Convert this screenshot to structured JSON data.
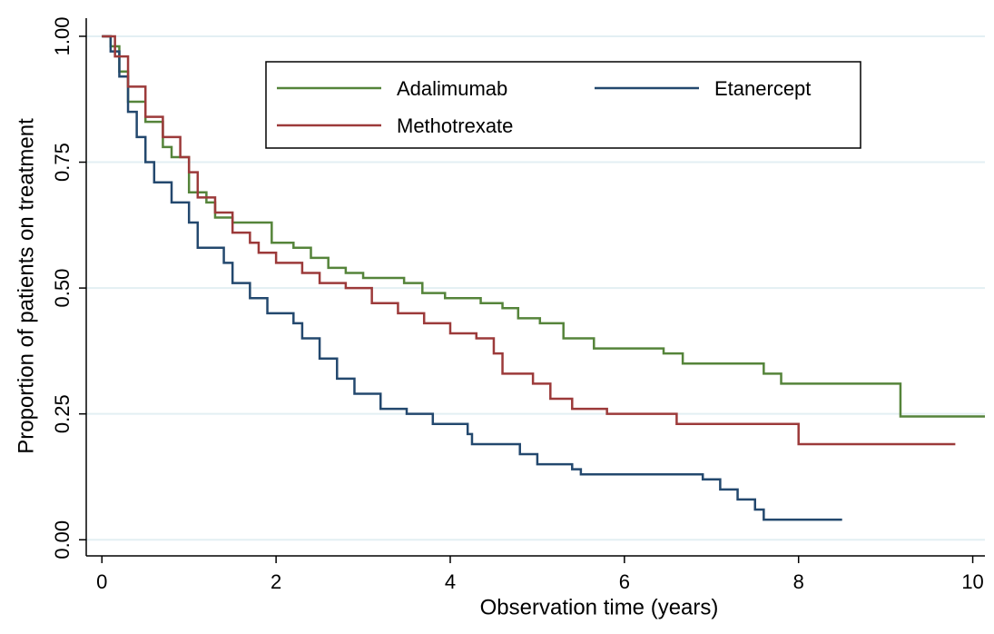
{
  "chart_data": {
    "type": "step",
    "xlabel": "Observation time (years)",
    "ylabel": "Proportion of patients on treatment",
    "xlim": [
      -0.18,
      10.14
    ],
    "ylim": [
      -0.032,
      1.036
    ],
    "xticks": [
      0,
      2,
      4,
      6,
      8,
      10
    ],
    "yticks": [
      {
        "value": 0,
        "label": "0.00"
      },
      0.25,
      {
        "value": 0.5,
        "label": "0.50"
      },
      0.75,
      {
        "value": 1,
        "label": "1.00"
      }
    ],
    "grid": true,
    "legend": "upper center",
    "series": [
      {
        "name": "Adalimumab",
        "color": "#55843a",
        "x": [
          0,
          0.1,
          0.2,
          0.3,
          0.5,
          0.7,
          0.8,
          1.0,
          1.2,
          1.3,
          1.5,
          1.95,
          2.2,
          2.4,
          2.6,
          2.8,
          3.0,
          3.47,
          3.68,
          3.94,
          4.35,
          4.6,
          4.78,
          5.03,
          5.3,
          5.65,
          6.45,
          6.67,
          7.6,
          7.8,
          9.17,
          10.14
        ],
        "values": [
          1.0,
          0.98,
          0.93,
          0.87,
          0.83,
          0.78,
          0.76,
          0.69,
          0.67,
          0.64,
          0.63,
          0.59,
          0.58,
          0.56,
          0.54,
          0.53,
          0.52,
          0.51,
          0.49,
          0.48,
          0.47,
          0.46,
          0.44,
          0.43,
          0.4,
          0.38,
          0.37,
          0.35,
          0.33,
          0.31,
          0.245,
          0.245
        ]
      },
      {
        "name": "Etanercept",
        "color": "#23486e",
        "x": [
          0,
          0.1,
          0.2,
          0.3,
          0.4,
          0.5,
          0.6,
          0.8,
          1.0,
          1.1,
          1.4,
          1.5,
          1.7,
          1.9,
          2.2,
          2.3,
          2.5,
          2.7,
          2.9,
          3.2,
          3.5,
          3.8,
          4.2,
          4.25,
          4.8,
          5.0,
          5.4,
          5.5,
          6.9,
          7.1,
          7.3,
          7.5,
          7.6,
          8.5
        ],
        "values": [
          1.0,
          0.97,
          0.92,
          0.85,
          0.8,
          0.75,
          0.71,
          0.67,
          0.63,
          0.58,
          0.55,
          0.51,
          0.48,
          0.45,
          0.43,
          0.4,
          0.36,
          0.32,
          0.29,
          0.26,
          0.25,
          0.23,
          0.21,
          0.19,
          0.17,
          0.15,
          0.14,
          0.13,
          0.12,
          0.1,
          0.08,
          0.06,
          0.04,
          0.04
        ]
      },
      {
        "name": "Methotrexate",
        "color": "#9c3a3a",
        "x": [
          0,
          0.15,
          0.3,
          0.5,
          0.7,
          0.9,
          1.0,
          1.1,
          1.3,
          1.5,
          1.7,
          1.8,
          2.0,
          2.3,
          2.5,
          2.8,
          3.1,
          3.4,
          3.7,
          4.0,
          4.3,
          4.5,
          4.6,
          4.95,
          5.15,
          5.4,
          5.8,
          6.6,
          8.0,
          9.8
        ],
        "values": [
          1.0,
          0.96,
          0.9,
          0.84,
          0.8,
          0.76,
          0.73,
          0.68,
          0.65,
          0.61,
          0.59,
          0.57,
          0.55,
          0.53,
          0.51,
          0.5,
          0.47,
          0.45,
          0.43,
          0.41,
          0.4,
          0.37,
          0.33,
          0.31,
          0.28,
          0.26,
          0.25,
          0.23,
          0.19,
          0.19
        ]
      }
    ]
  }
}
